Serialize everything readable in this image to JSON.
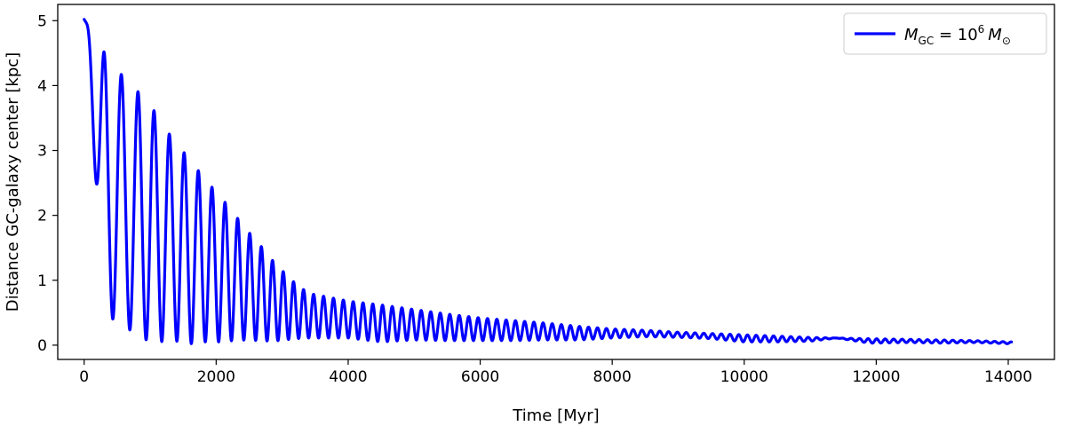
{
  "chart_data": {
    "type": "line",
    "title": "",
    "xlabel": "Time [Myr]",
    "ylabel": "Distance GC-galaxy center [kpc]",
    "xlim": [
      -400,
      14700
    ],
    "ylim": [
      -0.22,
      5.25
    ],
    "xticks": [
      0,
      2000,
      4000,
      6000,
      8000,
      10000,
      12000,
      14000
    ],
    "xtick_labels": [
      "0",
      "2000",
      "4000",
      "6000",
      "8000",
      "10000",
      "12000",
      "14000"
    ],
    "yticks": [
      0,
      1,
      2,
      3,
      4,
      5
    ],
    "ytick_labels": [
      "0",
      "1",
      "2",
      "3",
      "4",
      "5"
    ],
    "grid": false,
    "legend_position": "top-right",
    "legend": {
      "label_var": "M",
      "label_sub": "GC",
      "label_eq": " = 10",
      "label_exp": "6",
      "label_var2": "M",
      "label_sub2": "⊙"
    },
    "series": [
      {
        "name": "M_GC = 10^6 M_⊙",
        "color": "#0000ff",
        "x": [
          0,
          30,
          300,
          580,
          850,
          1110,
          1360,
          1600,
          1830,
          2050,
          2260,
          2460,
          2660,
          2850,
          3030,
          3200,
          3400,
          4000,
          4500,
          5000,
          5500,
          6000,
          6500,
          7000,
          7500,
          8000,
          8500,
          9000,
          9500,
          10000,
          10500,
          11000,
          11400,
          11900,
          12500,
          13000,
          13500,
          14050
        ],
        "y": [
          5.02,
          4.97,
          4.52,
          4.15,
          3.87,
          3.55,
          3.14,
          2.87,
          2.55,
          2.31,
          2.04,
          1.78,
          1.55,
          1.31,
          1.12,
          0.95,
          0.8,
          0.68,
          0.62,
          0.55,
          0.48,
          0.42,
          0.38,
          0.34,
          0.29,
          0.25,
          0.23,
          0.2,
          0.18,
          0.16,
          0.14,
          0.12,
          0.11,
          0.1,
          0.09,
          0.08,
          0.07,
          0.05
        ],
        "y_min": [
          5.02,
          4.97,
          0.47,
          0.33,
          0.1,
          0.05,
          0.07,
          0.02,
          0.05,
          0.05,
          0.07,
          0.08,
          0.07,
          0.06,
          0.08,
          0.1,
          0.11,
          0.11,
          0.05,
          0.08,
          0.07,
          0.07,
          0.07,
          0.08,
          0.08,
          0.11,
          0.13,
          0.12,
          0.1,
          0.05,
          0.05,
          0.06,
          0.11,
          0.03,
          0.04,
          0.03,
          0.04,
          0.02
        ]
      }
    ]
  }
}
